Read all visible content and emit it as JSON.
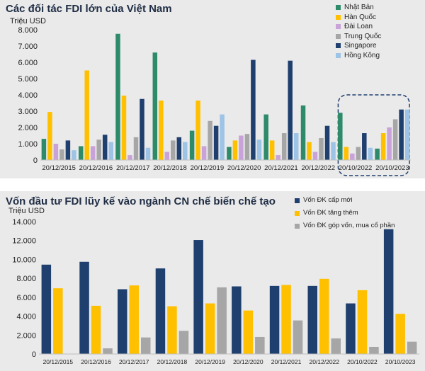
{
  "chart_data": [
    {
      "type": "bar",
      "title": "Các đối tác FDI lớn của Việt Nam",
      "ylabel": "Triệu USD",
      "ylim": [
        0,
        8000
      ],
      "yticks": [
        "0",
        "1.000",
        "2.000",
        "3.000",
        "4.000",
        "5.000",
        "6.000",
        "7.000",
        "8.000"
      ],
      "categories": [
        "20/12/2015",
        "20/12/2016",
        "20/12/2017",
        "20/12/2018",
        "20/12/2019",
        "20/12/2020",
        "20/12/2021",
        "20/12/2022",
        "20/10/2022",
        "20/10/2023"
      ],
      "legend_position": "top-right",
      "highlight": [
        "20/10/2022",
        "20/10/2023"
      ],
      "series": [
        {
          "name": "Nhật Bản",
          "color": "#2e8b6a",
          "values": [
            1300,
            850,
            7750,
            6600,
            1800,
            800,
            2800,
            3350,
            2900,
            700
          ]
        },
        {
          "name": "Hàn Quốc",
          "color": "#ffc000",
          "values": [
            2950,
            5500,
            3950,
            3650,
            3650,
            1200,
            1200,
            1100,
            800,
            1650
          ]
        },
        {
          "name": "Đài Loan",
          "color": "#c8a2d8",
          "values": [
            1000,
            850,
            300,
            500,
            850,
            1500,
            300,
            500,
            400,
            2000
          ]
        },
        {
          "name": "Trung Quốc",
          "color": "#a6a6a6",
          "values": [
            650,
            1250,
            1400,
            1200,
            2400,
            1600,
            1650,
            1350,
            800,
            2500
          ]
        },
        {
          "name": "Singapore",
          "color": "#1f3f6e",
          "values": [
            1200,
            1550,
            3750,
            1400,
            2100,
            6150,
            6100,
            2100,
            1650,
            3100
          ]
        },
        {
          "name": "Hồng Kông",
          "color": "#9dc3e6",
          "values": [
            600,
            1100,
            750,
            1100,
            2800,
            1250,
            1650,
            1100,
            750,
            3100
          ]
        }
      ]
    },
    {
      "type": "bar",
      "title": "Vốn đầu tư FDI lũy kế vào ngành CN chế biến chế tạo",
      "ylabel": "Triệu USD",
      "ylim": [
        0,
        14000
      ],
      "yticks": [
        "0",
        "2.000",
        "4.000",
        "6.000",
        "8.000",
        "10.000",
        "12.000",
        "14.000"
      ],
      "categories": [
        "20/12/2015",
        "20/12/2016",
        "20/12/2017",
        "20/12/2018",
        "20/12/2019",
        "20/12/2020",
        "20/12/2021",
        "20/12/2022",
        "20/10/2022",
        "20/10/2023"
      ],
      "legend_position": "top-right",
      "series": [
        {
          "name": "Vốn ĐK cấp mới",
          "color": "#1f3f6e",
          "values": [
            9450,
            9750,
            6850,
            9050,
            12050,
            7150,
            7200,
            7200,
            5350,
            13200
          ]
        },
        {
          "name": "Vốn ĐK tăng thêm",
          "color": "#ffc000",
          "values": [
            6950,
            5100,
            7250,
            5050,
            5350,
            4600,
            7300,
            7950,
            6750,
            4250
          ]
        },
        {
          "name": "Vốn ĐK góp vốn, mua cổ phần",
          "color": "#a6a6a6",
          "values": [
            0,
            600,
            1750,
            2450,
            7050,
            1800,
            3550,
            1650,
            750,
            1300
          ]
        }
      ]
    }
  ]
}
